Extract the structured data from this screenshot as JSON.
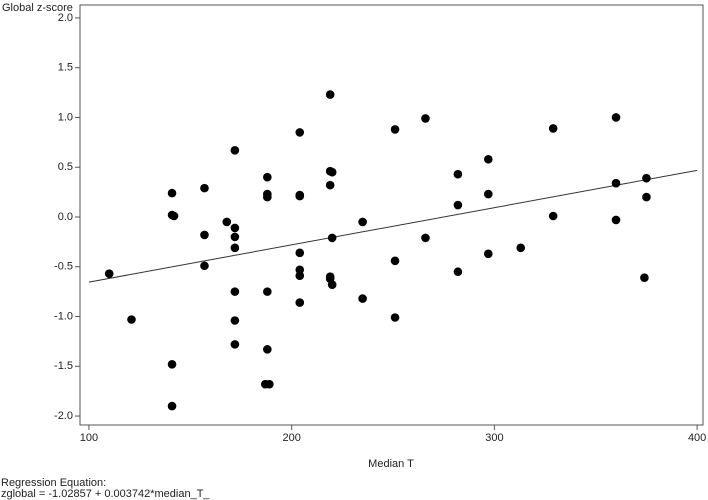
{
  "chart_data": {
    "type": "scatter",
    "y_label": "Global z-score",
    "x_label": "Median T",
    "footnote_title": "Regression Equation:",
    "footnote_equation": "zglobal = -1.02857 + 0.003742*median_T_",
    "regression_line": {
      "intercept": -1.02857,
      "slope": 0.003742,
      "color": "#333333"
    },
    "color": "#000000",
    "x": [
      110,
      121,
      141,
      141,
      142,
      141,
      141,
      157,
      157,
      157,
      168,
      172,
      172,
      172,
      172,
      172,
      172,
      172,
      188,
      188,
      188,
      188,
      188,
      187,
      189,
      204,
      204,
      204,
      204,
      204,
      204,
      204,
      219,
      219,
      220,
      219,
      220,
      219,
      219,
      220,
      235,
      235,
      251,
      251,
      251,
      266,
      266,
      282,
      282,
      282,
      297,
      297,
      297,
      313,
      329,
      329,
      360,
      360,
      360,
      375,
      375,
      374
    ],
    "y": [
      -0.57,
      -1.03,
      0.24,
      0.02,
      0.01,
      -1.48,
      -1.9,
      0.29,
      -0.18,
      -0.49,
      -0.05,
      -0.11,
      -0.2,
      0.67,
      -0.31,
      -0.75,
      -1.04,
      -1.28,
      0.4,
      0.23,
      0.2,
      -0.75,
      -1.33,
      -1.68,
      -1.68,
      0.85,
      0.22,
      0.21,
      -0.36,
      -0.53,
      -0.59,
      -0.86,
      1.23,
      0.46,
      0.45,
      0.32,
      -0.21,
      -0.6,
      -0.62,
      -0.68,
      -0.05,
      -0.82,
      0.88,
      -0.44,
      -1.01,
      0.99,
      -0.21,
      0.43,
      0.12,
      -0.55,
      0.58,
      0.23,
      -0.37,
      -0.31,
      0.89,
      0.01,
      1.0,
      0.34,
      -0.03,
      0.39,
      0.2,
      -0.61
    ],
    "xlim": [
      95.6,
      402.9
    ],
    "ylim": [
      -2.09,
      2.13
    ],
    "xticks": [
      100,
      200,
      300,
      400
    ],
    "yticks": [
      {
        "value": 2,
        "label": "2.0"
      },
      {
        "value": 1.5,
        "label": "1.5"
      },
      {
        "value": 1,
        "label": "1.0"
      },
      {
        "value": 0.5,
        "label": "0.5"
      },
      {
        "value": 0,
        "label": "0.0"
      },
      {
        "value": -0.5,
        "label": "-0.5"
      },
      {
        "value": -1,
        "label": "-1.0"
      },
      {
        "value": -1.5,
        "label": "-1.5"
      },
      {
        "value": -2,
        "label": "-2.0"
      }
    ]
  }
}
